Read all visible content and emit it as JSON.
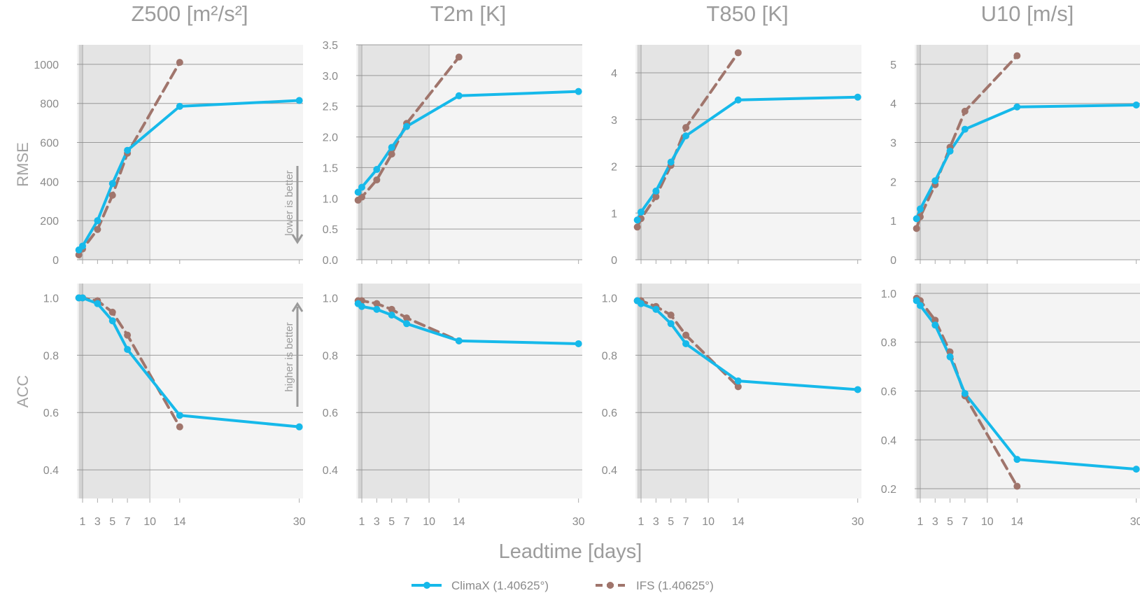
{
  "figure": {
    "xlabel": "Leadtime [days]",
    "row_labels": [
      "RMSE",
      "ACC"
    ],
    "annotations": {
      "lower_is_better": "lower is better",
      "higher_is_better": "higher is better"
    },
    "legend": [
      {
        "name": "ClimaX (1.40625°)",
        "color": "#16b9ea",
        "style": "solid"
      },
      {
        "name": "IFS (1.40625°)",
        "color": "#a0756c",
        "style": "dashed"
      }
    ],
    "shading": {
      "light": [
        0.5,
        10
      ],
      "dark": [
        0.5,
        1
      ]
    },
    "colors": {
      "climax": "#16b9ea",
      "ifs": "#a0756c",
      "panel_bg": "#f4f4f4",
      "shade_light": "#e4e4e4",
      "shade_dark": "#d3d3d3",
      "grid": "#8c8c8c"
    }
  },
  "chart_data": [
    {
      "type": "line",
      "title": "Z500",
      "title_unit": "[m²/s²]",
      "row": "RMSE",
      "col": 0,
      "x_ticks": [
        1,
        3,
        5,
        7,
        10,
        14,
        30
      ],
      "xlim": [
        0.25,
        30.5
      ],
      "ylim": [
        0,
        1100
      ],
      "y_ticks": [
        0,
        200,
        400,
        600,
        800,
        1000
      ],
      "y_tick_labels": [
        "0",
        "200",
        "400",
        "600",
        "800",
        "1000"
      ],
      "series": [
        {
          "name": "ClimaX (1.40625°)",
          "x": [
            0.5,
            1,
            3,
            5,
            7,
            14,
            30
          ],
          "y": [
            50,
            70,
            200,
            390,
            560,
            785,
            815
          ]
        },
        {
          "name": "IFS (1.40625°)",
          "x": [
            0.5,
            1,
            3,
            5,
            7,
            14
          ],
          "y": [
            25,
            55,
            155,
            330,
            545,
            1010
          ]
        }
      ]
    },
    {
      "type": "line",
      "title": "T2m [K]",
      "row": "RMSE",
      "col": 1,
      "x_ticks": [
        1,
        3,
        5,
        7,
        10,
        14,
        30
      ],
      "xlim": [
        0.25,
        30.5
      ],
      "ylim": [
        0,
        3.5
      ],
      "y_ticks": [
        0,
        0.5,
        1,
        1.5,
        2,
        2.5,
        3,
        3.5
      ],
      "y_tick_labels": [
        "0.0",
        "0.5",
        "1.0",
        "1.5",
        "2.0",
        "2.5",
        "3.0",
        "3.5"
      ],
      "series": [
        {
          "name": "ClimaX (1.40625°)",
          "x": [
            0.5,
            1,
            3,
            5,
            7,
            14,
            30
          ],
          "y": [
            1.1,
            1.18,
            1.47,
            1.83,
            2.17,
            2.67,
            2.74
          ]
        },
        {
          "name": "IFS (1.40625°)",
          "x": [
            0.5,
            1,
            3,
            5,
            7,
            14
          ],
          "y": [
            0.97,
            1.02,
            1.3,
            1.72,
            2.22,
            3.3
          ]
        }
      ]
    },
    {
      "type": "line",
      "title": "T850 [K]",
      "row": "RMSE",
      "col": 2,
      "x_ticks": [
        1,
        3,
        5,
        7,
        10,
        14,
        30
      ],
      "xlim": [
        0.25,
        30.5
      ],
      "ylim": [
        0,
        4.6
      ],
      "y_ticks": [
        0,
        1,
        2,
        3,
        4
      ],
      "y_tick_labels": [
        "0",
        "1",
        "2",
        "3",
        "4"
      ],
      "series": [
        {
          "name": "ClimaX (1.40625°)",
          "x": [
            0.5,
            1,
            3,
            5,
            7,
            14,
            30
          ],
          "y": [
            0.85,
            1.02,
            1.47,
            2.09,
            2.65,
            3.42,
            3.48
          ]
        },
        {
          "name": "IFS (1.40625°)",
          "x": [
            0.5,
            1,
            3,
            5,
            7,
            14
          ],
          "y": [
            0.7,
            0.88,
            1.35,
            2.02,
            2.83,
            4.43
          ]
        }
      ]
    },
    {
      "type": "line",
      "title": "U10 [m/s]",
      "row": "RMSE",
      "col": 3,
      "x_ticks": [
        1,
        3,
        5,
        7,
        10,
        14,
        30
      ],
      "xlim": [
        0.25,
        30.5
      ],
      "ylim": [
        0,
        5.5
      ],
      "y_ticks": [
        0,
        1,
        2,
        3,
        4,
        5
      ],
      "y_tick_labels": [
        "0",
        "1",
        "2",
        "3",
        "4",
        "5"
      ],
      "series": [
        {
          "name": "ClimaX (1.40625°)",
          "x": [
            0.5,
            1,
            3,
            5,
            7,
            14,
            30
          ],
          "y": [
            1.05,
            1.3,
            2.02,
            2.78,
            3.34,
            3.91,
            3.96
          ]
        },
        {
          "name": "IFS (1.40625°)",
          "x": [
            0.5,
            1,
            3,
            5,
            7,
            14
          ],
          "y": [
            0.8,
            1.1,
            1.92,
            2.88,
            3.8,
            5.22
          ]
        }
      ]
    },
    {
      "type": "line",
      "title": "",
      "row": "ACC",
      "col": 0,
      "x_ticks": [
        1,
        3,
        5,
        7,
        10,
        14,
        30
      ],
      "xlim": [
        0.25,
        30.5
      ],
      "ylim": [
        0.3,
        1.05
      ],
      "y_ticks": [
        0.4,
        0.6,
        0.8,
        1.0
      ],
      "y_tick_labels": [
        "0.4",
        "0.6",
        "0.8",
        "1.0"
      ],
      "series": [
        {
          "name": "ClimaX (1.40625°)",
          "x": [
            0.5,
            1,
            3,
            5,
            7,
            14,
            30
          ],
          "y": [
            1.0,
            1.0,
            0.98,
            0.92,
            0.82,
            0.59,
            0.55
          ]
        },
        {
          "name": "IFS (1.40625°)",
          "x": [
            0.5,
            1,
            3,
            5,
            7,
            14
          ],
          "y": [
            1.0,
            1.0,
            0.99,
            0.95,
            0.87,
            0.55
          ]
        }
      ]
    },
    {
      "type": "line",
      "title": "",
      "row": "ACC",
      "col": 1,
      "x_ticks": [
        1,
        3,
        5,
        7,
        10,
        14,
        30
      ],
      "xlim": [
        0.25,
        30.5
      ],
      "ylim": [
        0.3,
        1.05
      ],
      "y_ticks": [
        0.4,
        0.6,
        0.8,
        1.0
      ],
      "y_tick_labels": [
        "0.4",
        "0.6",
        "0.8",
        "1.0"
      ],
      "series": [
        {
          "name": "ClimaX (1.40625°)",
          "x": [
            0.5,
            1,
            3,
            5,
            7,
            14,
            30
          ],
          "y": [
            0.98,
            0.97,
            0.96,
            0.94,
            0.91,
            0.85,
            0.84
          ]
        },
        {
          "name": "IFS (1.40625°)",
          "x": [
            0.5,
            1,
            3,
            5,
            7,
            14
          ],
          "y": [
            0.99,
            0.99,
            0.98,
            0.96,
            0.93,
            0.85
          ]
        }
      ]
    },
    {
      "type": "line",
      "title": "",
      "row": "ACC",
      "col": 2,
      "x_ticks": [
        1,
        3,
        5,
        7,
        10,
        14,
        30
      ],
      "xlim": [
        0.25,
        30.5
      ],
      "ylim": [
        0.3,
        1.05
      ],
      "y_ticks": [
        0.4,
        0.6,
        0.8,
        1.0
      ],
      "y_tick_labels": [
        "0.4",
        "0.6",
        "0.8",
        "1.0"
      ],
      "series": [
        {
          "name": "ClimaX (1.40625°)",
          "x": [
            0.5,
            1,
            3,
            5,
            7,
            14,
            30
          ],
          "y": [
            0.99,
            0.98,
            0.96,
            0.91,
            0.84,
            0.71,
            0.68
          ]
        },
        {
          "name": "IFS (1.40625°)",
          "x": [
            0.5,
            1,
            3,
            5,
            7,
            14
          ],
          "y": [
            0.99,
            0.99,
            0.97,
            0.94,
            0.87,
            0.69
          ]
        }
      ]
    },
    {
      "type": "line",
      "title": "",
      "row": "ACC",
      "col": 3,
      "x_ticks": [
        1,
        3,
        5,
        7,
        10,
        14,
        30
      ],
      "xlim": [
        0.25,
        30.5
      ],
      "ylim": [
        0.16,
        1.04
      ],
      "y_ticks": [
        0.2,
        0.4,
        0.6,
        0.8,
        1.0
      ],
      "y_tick_labels": [
        "0.2",
        "0.4",
        "0.6",
        "0.8",
        "1.0"
      ],
      "series": [
        {
          "name": "ClimaX (1.40625°)",
          "x": [
            0.5,
            1,
            3,
            5,
            7,
            14,
            30
          ],
          "y": [
            0.97,
            0.95,
            0.87,
            0.74,
            0.59,
            0.32,
            0.28
          ]
        },
        {
          "name": "IFS (1.40625°)",
          "x": [
            0.5,
            1,
            3,
            5,
            7,
            14
          ],
          "y": [
            0.98,
            0.97,
            0.89,
            0.76,
            0.58,
            0.21
          ]
        }
      ]
    }
  ]
}
